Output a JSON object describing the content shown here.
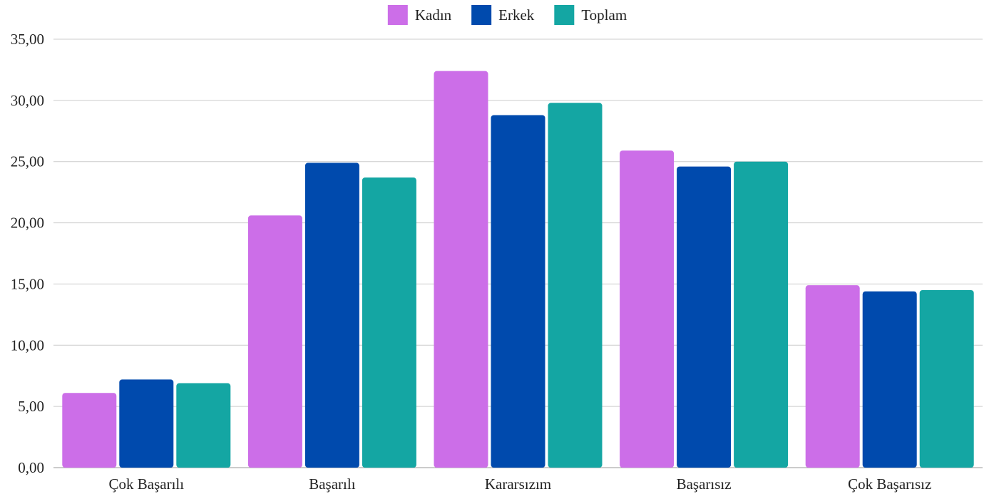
{
  "chart_data": {
    "type": "bar",
    "title": "",
    "xlabel": "",
    "ylabel": "",
    "categories": [
      "Çok Başarılı",
      "Başarılı",
      "Kararsızım",
      "Başarısız",
      "Çok Başarısız"
    ],
    "series": [
      {
        "name": "Kadın",
        "color": "#cc6ee8",
        "values": [
          6.1,
          20.6,
          32.4,
          25.9,
          14.9
        ]
      },
      {
        "name": "Erkek",
        "color": "#004aad",
        "values": [
          7.2,
          24.9,
          28.8,
          24.6,
          14.4
        ]
      },
      {
        "name": "Toplam",
        "color": "#14a6a3",
        "values": [
          6.9,
          23.7,
          29.8,
          25.0,
          14.5
        ]
      }
    ],
    "yticks": [
      "0,00",
      "5,00",
      "10,00",
      "15,00",
      "20,00",
      "25,00",
      "30,00",
      "35,00"
    ],
    "ylim": [
      0,
      35
    ],
    "grid": true,
    "legend_position": "top-center"
  }
}
